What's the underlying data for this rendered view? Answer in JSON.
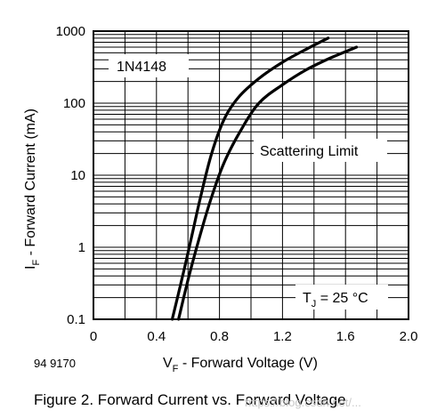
{
  "chart_data": {
    "type": "line",
    "x_axis": {
      "label_main": "V",
      "label_sub": "F",
      "label_rest": " - Forward Voltage (V)",
      "ticks": [
        0,
        0.4,
        0.8,
        1.2,
        1.6,
        2.0
      ],
      "tick_labels": [
        "0",
        "0.4",
        "0.8",
        "1.2",
        "1.6",
        "2.0"
      ],
      "range": [
        0,
        2.0
      ],
      "minor_step": 0.2
    },
    "y_axis": {
      "label_main": "I",
      "label_sub": "F",
      "label_rest": " - Forward Current (mA)",
      "scale": "log",
      "ticks": [
        0.1,
        1,
        10,
        100,
        1000
      ],
      "tick_labels": [
        "0.1",
        "1",
        "10",
        "100",
        "1000"
      ],
      "range": [
        0.1,
        1000
      ]
    },
    "grid": true,
    "series": [
      {
        "points": [
          [
            0.5,
            0.1
          ],
          [
            0.56,
            0.35
          ],
          [
            0.62,
            1.3
          ],
          [
            0.68,
            5
          ],
          [
            0.75,
            20
          ],
          [
            0.83,
            60
          ],
          [
            0.92,
            120
          ],
          [
            1.05,
            220
          ],
          [
            1.2,
            370
          ],
          [
            1.35,
            560
          ],
          [
            1.49,
            800
          ]
        ]
      },
      {
        "points": [
          [
            0.54,
            0.1
          ],
          [
            0.6,
            0.35
          ],
          [
            0.67,
            1.3
          ],
          [
            0.75,
            5
          ],
          [
            0.83,
            15
          ],
          [
            0.93,
            40
          ],
          [
            1.05,
            100
          ],
          [
            1.2,
            180
          ],
          [
            1.35,
            290
          ],
          [
            1.5,
            420
          ],
          [
            1.67,
            600
          ]
        ]
      }
    ],
    "annotations": {
      "part": "1N4148",
      "region": "Scattering Limit",
      "temperature_main": "T",
      "temperature_sub": "J",
      "temperature_rest": " = 25 °C"
    },
    "figure_number": "94 9170",
    "caption": "Figure 2. Forward Current vs. Forward Voltage",
    "watermark": "https://blog.csdn.net/..."
  }
}
